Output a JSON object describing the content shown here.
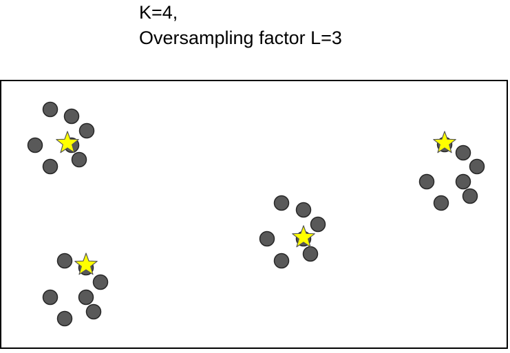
{
  "title": {
    "line1": "K=4,",
    "line2": "Oversampling factor L=3"
  },
  "colors": {
    "point_fill": "#595959",
    "point_stroke": "#262626",
    "star_fill": "#ffff00",
    "star_stroke": "#555555",
    "frame": "#000000"
  },
  "clusters": [
    {
      "id": 1,
      "points": 7,
      "centers": 1
    },
    {
      "id": 2,
      "points": 7,
      "centers": 1
    },
    {
      "id": 3,
      "points": 7,
      "centers": 1
    },
    {
      "id": 4,
      "points": 7,
      "centers": 1
    }
  ]
}
